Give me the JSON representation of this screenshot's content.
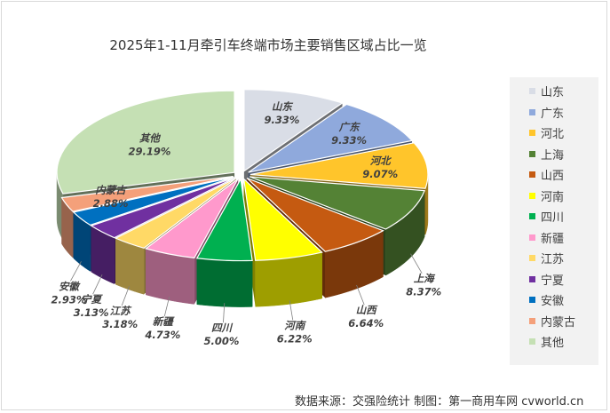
{
  "chart_data": {
    "type": "pie",
    "title": "2025年1-11月牵引车终端市场主要销售区域占比一览",
    "categories": [
      "山东",
      "广东",
      "河北",
      "上海",
      "山西",
      "河南",
      "四川",
      "新疆",
      "江苏",
      "宁夏",
      "安徽",
      "内蒙古",
      "其他"
    ],
    "values": [
      9.33,
      9.33,
      9.07,
      8.37,
      6.64,
      6.22,
      5.0,
      4.73,
      3.18,
      3.13,
      2.93,
      2.88,
      29.19
    ],
    "value_labels": [
      "9.33%",
      "9.33%",
      "9.07%",
      "8.37%",
      "6.64%",
      "6.22%",
      "5.00%",
      "4.73%",
      "3.18%",
      "3.13%",
      "2.93%",
      "2.88%",
      "29.19%"
    ],
    "colors": [
      "#d9dde6",
      "#8fa9dc",
      "#ffc52b",
      "#548235",
      "#c55a11",
      "#ffff00",
      "#00b050",
      "#ff99cc",
      "#ffd966",
      "#7030a0",
      "#0070c0",
      "#f4a07a",
      "#c5e0b4"
    ],
    "legend_position": "right",
    "style": "3d-exploded"
  },
  "source_note": "数据来源：交强险统计  制图：第一商用车网 cvworld.cn"
}
